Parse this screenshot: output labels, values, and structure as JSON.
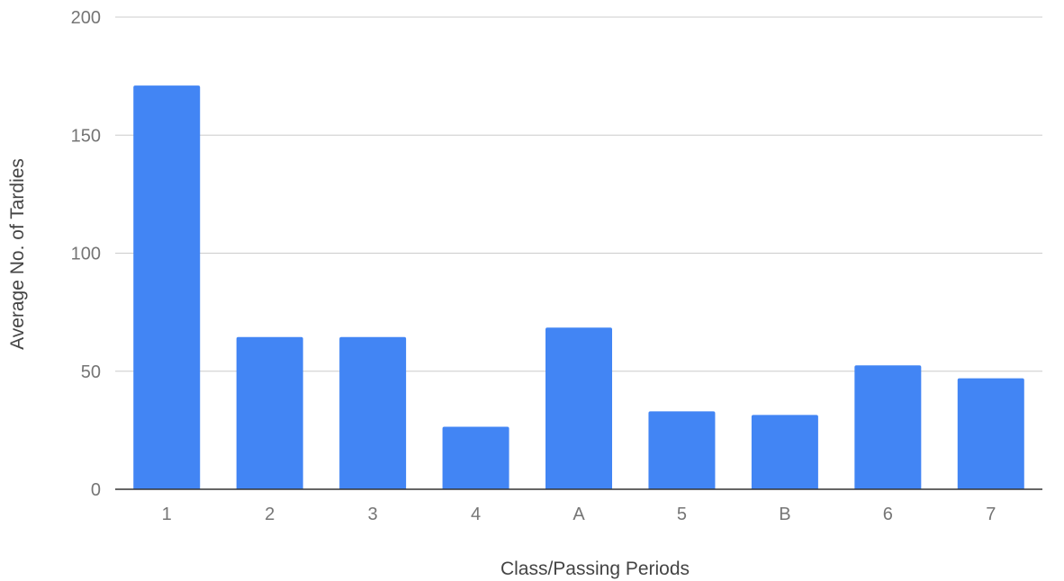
{
  "chart_data": {
    "type": "bar",
    "title": "",
    "xlabel": "Class/Passing Periods",
    "ylabel": "Average No. of Tardies",
    "categories": [
      "1",
      "2",
      "3",
      "4",
      "A",
      "5",
      "B",
      "6",
      "7"
    ],
    "values": [
      171,
      64.5,
      64.5,
      26.5,
      68.5,
      33,
      31.5,
      52.5,
      47
    ],
    "ylim": [
      0,
      200
    ],
    "yticks": [
      "0",
      "50",
      "100",
      "150",
      "200"
    ],
    "grid": true,
    "legend": "none"
  },
  "colors": {
    "bar": "#4285F4",
    "grid": "#cccccc",
    "baseline": "#333333"
  }
}
